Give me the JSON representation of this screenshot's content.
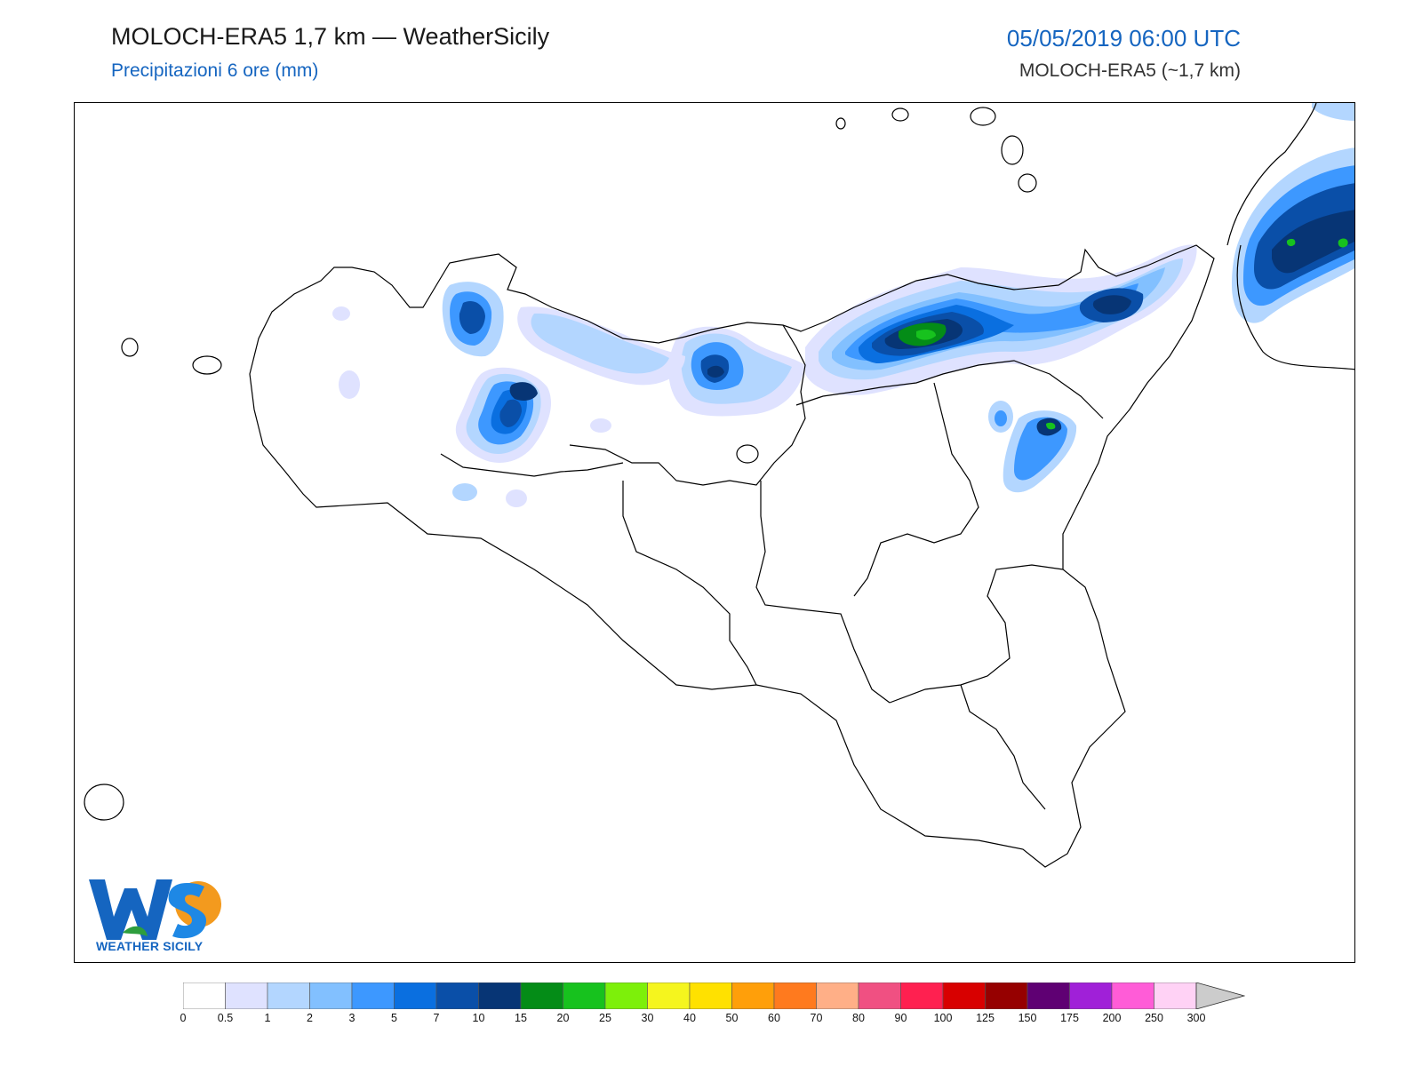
{
  "header": {
    "title": "MOLOCH-ERA5 1,7 km — WeatherSicily",
    "subtitle": "Precipitazioni 6 ore (mm)",
    "datetime": "05/05/2019 06:00 UTC",
    "model": "MOLOCH-ERA5 (~1,7 km)"
  },
  "logo": {
    "letters": "WS",
    "text": "WEATHER SICILY"
  },
  "colorbar": {
    "ticks": [
      "0",
      "0.5",
      "1",
      "2",
      "3",
      "5",
      "7",
      "10",
      "15",
      "20",
      "25",
      "30",
      "40",
      "50",
      "60",
      "70",
      "80",
      "90",
      "100",
      "125",
      "150",
      "175",
      "200",
      "250",
      "300"
    ],
    "colors": [
      "#ffffff",
      "#dfe2ff",
      "#b3d6ff",
      "#82c0ff",
      "#3d98ff",
      "#0a6fe0",
      "#0a4fa8",
      "#073575",
      "#048c17",
      "#17c21e",
      "#7df00a",
      "#f5f51e",
      "#ffe100",
      "#ff9f0a",
      "#ff7a1e",
      "#ffaf87",
      "#f05082",
      "#ff2050",
      "#d80000",
      "#960000",
      "#5f0073",
      "#a020d8",
      "#ff5cd7",
      "#ffd2f5"
    ],
    "extend_color": "#cccccc"
  }
}
